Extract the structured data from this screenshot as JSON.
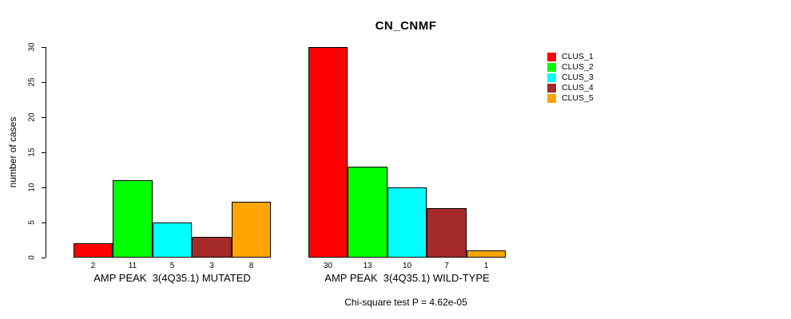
{
  "chart_data": {
    "type": "bar",
    "title": "CN_CNMF",
    "ylabel": "number of cases",
    "xlabel": "",
    "ylim": [
      0,
      30
    ],
    "yticks": [
      0,
      5,
      10,
      15,
      20,
      25,
      30
    ],
    "grid": false,
    "legend_position": "right",
    "series": [
      {
        "name": "CLUS_1",
        "color": "#FF0000"
      },
      {
        "name": "CLUS_2",
        "color": "#00FF00"
      },
      {
        "name": "CLUS_3",
        "color": "#00FFFF"
      },
      {
        "name": "CLUS_4",
        "color": "#A52A2A"
      },
      {
        "name": "CLUS_5",
        "color": "#FFA500"
      }
    ],
    "groups": [
      {
        "label": "AMP PEAK  3(4Q35.1) MUTATED",
        "values": [
          2,
          11,
          5,
          3,
          8
        ]
      },
      {
        "label": "AMP PEAK  3(4Q35.1) WILD-TYPE",
        "values": [
          30,
          13,
          10,
          7,
          1
        ]
      }
    ],
    "annotation": "Chi-square test P = 4.62e-05"
  }
}
